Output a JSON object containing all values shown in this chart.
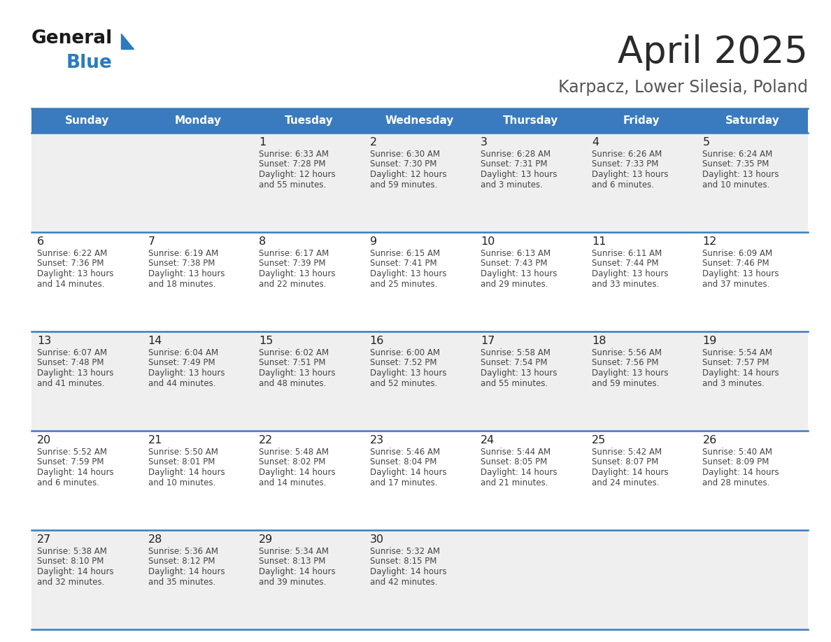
{
  "title": "April 2025",
  "subtitle": "Karpacz, Lower Silesia, Poland",
  "header_bg": "#3A7BBF",
  "header_text": "#FFFFFF",
  "row_bg_odd": "#EFEFEF",
  "row_bg_even": "#FFFFFF",
  "border_color": "#3A7BBF",
  "day_headers": [
    "Sunday",
    "Monday",
    "Tuesday",
    "Wednesday",
    "Thursday",
    "Friday",
    "Saturday"
  ],
  "calendar_data": [
    [
      {
        "day": "",
        "lines": []
      },
      {
        "day": "",
        "lines": []
      },
      {
        "day": "1",
        "lines": [
          "Sunrise: 6:33 AM",
          "Sunset: 7:28 PM",
          "Daylight: 12 hours",
          "and 55 minutes."
        ]
      },
      {
        "day": "2",
        "lines": [
          "Sunrise: 6:30 AM",
          "Sunset: 7:30 PM",
          "Daylight: 12 hours",
          "and 59 minutes."
        ]
      },
      {
        "day": "3",
        "lines": [
          "Sunrise: 6:28 AM",
          "Sunset: 7:31 PM",
          "Daylight: 13 hours",
          "and 3 minutes."
        ]
      },
      {
        "day": "4",
        "lines": [
          "Sunrise: 6:26 AM",
          "Sunset: 7:33 PM",
          "Daylight: 13 hours",
          "and 6 minutes."
        ]
      },
      {
        "day": "5",
        "lines": [
          "Sunrise: 6:24 AM",
          "Sunset: 7:35 PM",
          "Daylight: 13 hours",
          "and 10 minutes."
        ]
      }
    ],
    [
      {
        "day": "6",
        "lines": [
          "Sunrise: 6:22 AM",
          "Sunset: 7:36 PM",
          "Daylight: 13 hours",
          "and 14 minutes."
        ]
      },
      {
        "day": "7",
        "lines": [
          "Sunrise: 6:19 AM",
          "Sunset: 7:38 PM",
          "Daylight: 13 hours",
          "and 18 minutes."
        ]
      },
      {
        "day": "8",
        "lines": [
          "Sunrise: 6:17 AM",
          "Sunset: 7:39 PM",
          "Daylight: 13 hours",
          "and 22 minutes."
        ]
      },
      {
        "day": "9",
        "lines": [
          "Sunrise: 6:15 AM",
          "Sunset: 7:41 PM",
          "Daylight: 13 hours",
          "and 25 minutes."
        ]
      },
      {
        "day": "10",
        "lines": [
          "Sunrise: 6:13 AM",
          "Sunset: 7:43 PM",
          "Daylight: 13 hours",
          "and 29 minutes."
        ]
      },
      {
        "day": "11",
        "lines": [
          "Sunrise: 6:11 AM",
          "Sunset: 7:44 PM",
          "Daylight: 13 hours",
          "and 33 minutes."
        ]
      },
      {
        "day": "12",
        "lines": [
          "Sunrise: 6:09 AM",
          "Sunset: 7:46 PM",
          "Daylight: 13 hours",
          "and 37 minutes."
        ]
      }
    ],
    [
      {
        "day": "13",
        "lines": [
          "Sunrise: 6:07 AM",
          "Sunset: 7:48 PM",
          "Daylight: 13 hours",
          "and 41 minutes."
        ]
      },
      {
        "day": "14",
        "lines": [
          "Sunrise: 6:04 AM",
          "Sunset: 7:49 PM",
          "Daylight: 13 hours",
          "and 44 minutes."
        ]
      },
      {
        "day": "15",
        "lines": [
          "Sunrise: 6:02 AM",
          "Sunset: 7:51 PM",
          "Daylight: 13 hours",
          "and 48 minutes."
        ]
      },
      {
        "day": "16",
        "lines": [
          "Sunrise: 6:00 AM",
          "Sunset: 7:52 PM",
          "Daylight: 13 hours",
          "and 52 minutes."
        ]
      },
      {
        "day": "17",
        "lines": [
          "Sunrise: 5:58 AM",
          "Sunset: 7:54 PM",
          "Daylight: 13 hours",
          "and 55 minutes."
        ]
      },
      {
        "day": "18",
        "lines": [
          "Sunrise: 5:56 AM",
          "Sunset: 7:56 PM",
          "Daylight: 13 hours",
          "and 59 minutes."
        ]
      },
      {
        "day": "19",
        "lines": [
          "Sunrise: 5:54 AM",
          "Sunset: 7:57 PM",
          "Daylight: 14 hours",
          "and 3 minutes."
        ]
      }
    ],
    [
      {
        "day": "20",
        "lines": [
          "Sunrise: 5:52 AM",
          "Sunset: 7:59 PM",
          "Daylight: 14 hours",
          "and 6 minutes."
        ]
      },
      {
        "day": "21",
        "lines": [
          "Sunrise: 5:50 AM",
          "Sunset: 8:01 PM",
          "Daylight: 14 hours",
          "and 10 minutes."
        ]
      },
      {
        "day": "22",
        "lines": [
          "Sunrise: 5:48 AM",
          "Sunset: 8:02 PM",
          "Daylight: 14 hours",
          "and 14 minutes."
        ]
      },
      {
        "day": "23",
        "lines": [
          "Sunrise: 5:46 AM",
          "Sunset: 8:04 PM",
          "Daylight: 14 hours",
          "and 17 minutes."
        ]
      },
      {
        "day": "24",
        "lines": [
          "Sunrise: 5:44 AM",
          "Sunset: 8:05 PM",
          "Daylight: 14 hours",
          "and 21 minutes."
        ]
      },
      {
        "day": "25",
        "lines": [
          "Sunrise: 5:42 AM",
          "Sunset: 8:07 PM",
          "Daylight: 14 hours",
          "and 24 minutes."
        ]
      },
      {
        "day": "26",
        "lines": [
          "Sunrise: 5:40 AM",
          "Sunset: 8:09 PM",
          "Daylight: 14 hours",
          "and 28 minutes."
        ]
      }
    ],
    [
      {
        "day": "27",
        "lines": [
          "Sunrise: 5:38 AM",
          "Sunset: 8:10 PM",
          "Daylight: 14 hours",
          "and 32 minutes."
        ]
      },
      {
        "day": "28",
        "lines": [
          "Sunrise: 5:36 AM",
          "Sunset: 8:12 PM",
          "Daylight: 14 hours",
          "and 35 minutes."
        ]
      },
      {
        "day": "29",
        "lines": [
          "Sunrise: 5:34 AM",
          "Sunset: 8:13 PM",
          "Daylight: 14 hours",
          "and 39 minutes."
        ]
      },
      {
        "day": "30",
        "lines": [
          "Sunrise: 5:32 AM",
          "Sunset: 8:15 PM",
          "Daylight: 14 hours",
          "and 42 minutes."
        ]
      },
      {
        "day": "",
        "lines": []
      },
      {
        "day": "",
        "lines": []
      },
      {
        "day": "",
        "lines": []
      }
    ]
  ],
  "logo_text_general": "General",
  "logo_text_blue": "Blue",
  "logo_color_general": "#1a1a1a",
  "logo_color_blue": "#2A7BBF",
  "title_color": "#2a2a2a",
  "subtitle_color": "#555555",
  "cell_text_color": "#444444",
  "cell_day_color": "#222222"
}
